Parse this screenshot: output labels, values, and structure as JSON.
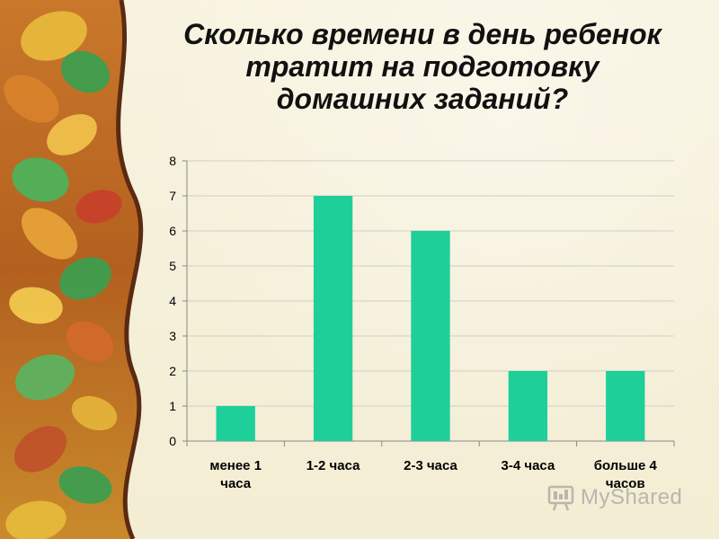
{
  "slide": {
    "title_lines": [
      "Сколько времени в день ребенок",
      "тратит на подготовку",
      "домашних заданий?"
    ],
    "watermark": "MyShared"
  },
  "chart_data": {
    "type": "bar",
    "title": "",
    "xlabel": "",
    "ylabel": "",
    "categories": [
      [
        "менее 1",
        "часа"
      ],
      [
        "1-2 часа"
      ],
      [
        "2-3 часа"
      ],
      [
        "3-4 часа"
      ],
      [
        "больше 4",
        "часов"
      ]
    ],
    "values": [
      1,
      7,
      6,
      2,
      2
    ],
    "ylim": [
      0,
      8
    ],
    "yticks": [
      "0",
      "1",
      "2",
      "3",
      "4",
      "5",
      "6",
      "7",
      "8"
    ],
    "grid": true,
    "bar_color": "#1fcf9a",
    "grid_color": "#cfcfc4"
  }
}
